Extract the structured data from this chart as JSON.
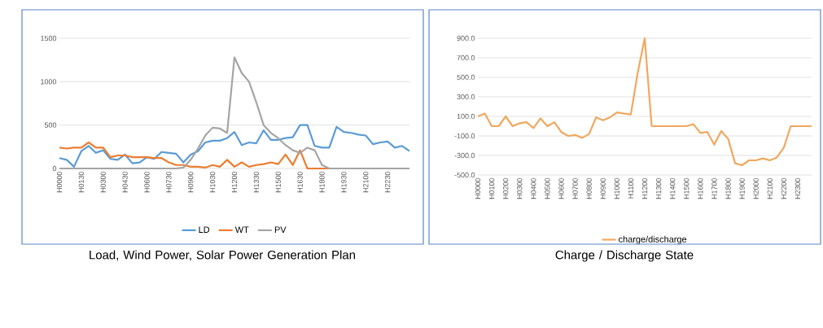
{
  "chart_data": [
    {
      "type": "line",
      "title": "Load, Wind Power, Solar Power Generation Plan",
      "categories": [
        "H0000",
        null,
        null,
        "H0130",
        null,
        null,
        "H0300",
        null,
        null,
        "H0430",
        null,
        null,
        "H0600",
        null,
        null,
        "H0730",
        null,
        null,
        "H0900",
        null,
        null,
        "H1030",
        null,
        null,
        "H1200",
        null,
        null,
        "H1330",
        null,
        null,
        "H1500",
        null,
        null,
        "H1630",
        null,
        null,
        "H1800",
        null,
        null,
        "H1930",
        null,
        null,
        "H2100",
        null,
        null,
        "H2230",
        null,
        null,
        null
      ],
      "series": [
        {
          "name": "LD",
          "color": "#5b9bd5",
          "values": [
            120,
            100,
            20,
            200,
            260,
            180,
            210,
            110,
            100,
            160,
            60,
            70,
            130,
            110,
            190,
            180,
            170,
            70,
            160,
            200,
            300,
            320,
            320,
            350,
            420,
            270,
            300,
            290,
            440,
            330,
            330,
            350,
            360,
            500,
            500,
            260,
            240,
            240,
            480,
            420,
            410,
            390,
            380,
            280,
            300,
            310,
            240,
            260,
            200
          ]
        },
        {
          "name": "WT",
          "color": "#ed7d31",
          "values": [
            240,
            230,
            240,
            240,
            300,
            240,
            240,
            130,
            150,
            150,
            130,
            130,
            130,
            120,
            120,
            70,
            40,
            40,
            20,
            20,
            10,
            40,
            20,
            100,
            20,
            70,
            20,
            40,
            50,
            70,
            50,
            160,
            40,
            210,
            0,
            0,
            0,
            0,
            0,
            null,
            null,
            null,
            null,
            null,
            null,
            null,
            null,
            null,
            null
          ]
        },
        {
          "name": "PV",
          "color": "#a5a5a5",
          "values": [
            0,
            0,
            0,
            0,
            0,
            0,
            0,
            0,
            0,
            0,
            0,
            0,
            0,
            0,
            0,
            0,
            0,
            10,
            100,
            230,
            380,
            470,
            460,
            410,
            1280,
            1100,
            1000,
            760,
            500,
            410,
            350,
            270,
            210,
            180,
            240,
            210,
            40,
            0,
            0,
            0,
            0,
            0,
            0,
            0,
            0,
            0,
            0,
            0,
            0
          ]
        }
      ],
      "ylim": [
        0,
        1500
      ],
      "yticks": [
        0,
        500,
        1000,
        1500
      ],
      "grid": "y",
      "legend": "bottom",
      "marker": "none",
      "line_style": "solid"
    },
    {
      "type": "line",
      "title": "Charge / Discharge State",
      "categories": [
        "H0000",
        null,
        "H0100",
        null,
        "H0200",
        null,
        "H0300",
        null,
        "H0400",
        null,
        "H0500",
        null,
        "H0600",
        null,
        "H0700",
        null,
        "H0800",
        null,
        "H0900",
        null,
        "H1000",
        null,
        "H1100",
        null,
        "H1200",
        null,
        "H1300",
        null,
        "H1400",
        null,
        "H1500",
        null,
        "H1600",
        null,
        "H1700",
        null,
        "H1800",
        null,
        "H1900",
        null,
        "H2000",
        null,
        "H2100",
        null,
        "H2200",
        null,
        "H2300",
        null,
        null
      ],
      "series": [
        {
          "name": "charge/discharge",
          "color": "#f0a860",
          "values": [
            100,
            130,
            0,
            0,
            100,
            0,
            30,
            40,
            -20,
            80,
            0,
            40,
            -60,
            -100,
            -90,
            -120,
            -80,
            90,
            60,
            90,
            140,
            130,
            120,
            550,
            900,
            0,
            0,
            0,
            0,
            0,
            0,
            20,
            -70,
            -60,
            -190,
            -50,
            -130,
            -380,
            -400,
            -350,
            -350,
            -330,
            -350,
            -320,
            -220,
            0,
            0,
            0,
            0
          ]
        }
      ],
      "ylim": [
        -500,
        900
      ],
      "yticks": [
        {
          "value": 900,
          "label": "900.0"
        },
        {
          "value": 700,
          "label": "700.0"
        },
        {
          "value": 500,
          "label": "500.0"
        },
        {
          "value": 300,
          "label": "300.0"
        },
        {
          "value": 100,
          "label": "100.0"
        },
        {
          "value": -100,
          "label": "-100.0"
        },
        {
          "value": -300,
          "label": "-300.0"
        },
        {
          "value": -500,
          "label": "-500.0"
        }
      ],
      "grid": "y",
      "legend": "bottom",
      "marker": "none",
      "line_style": "solid"
    }
  ]
}
